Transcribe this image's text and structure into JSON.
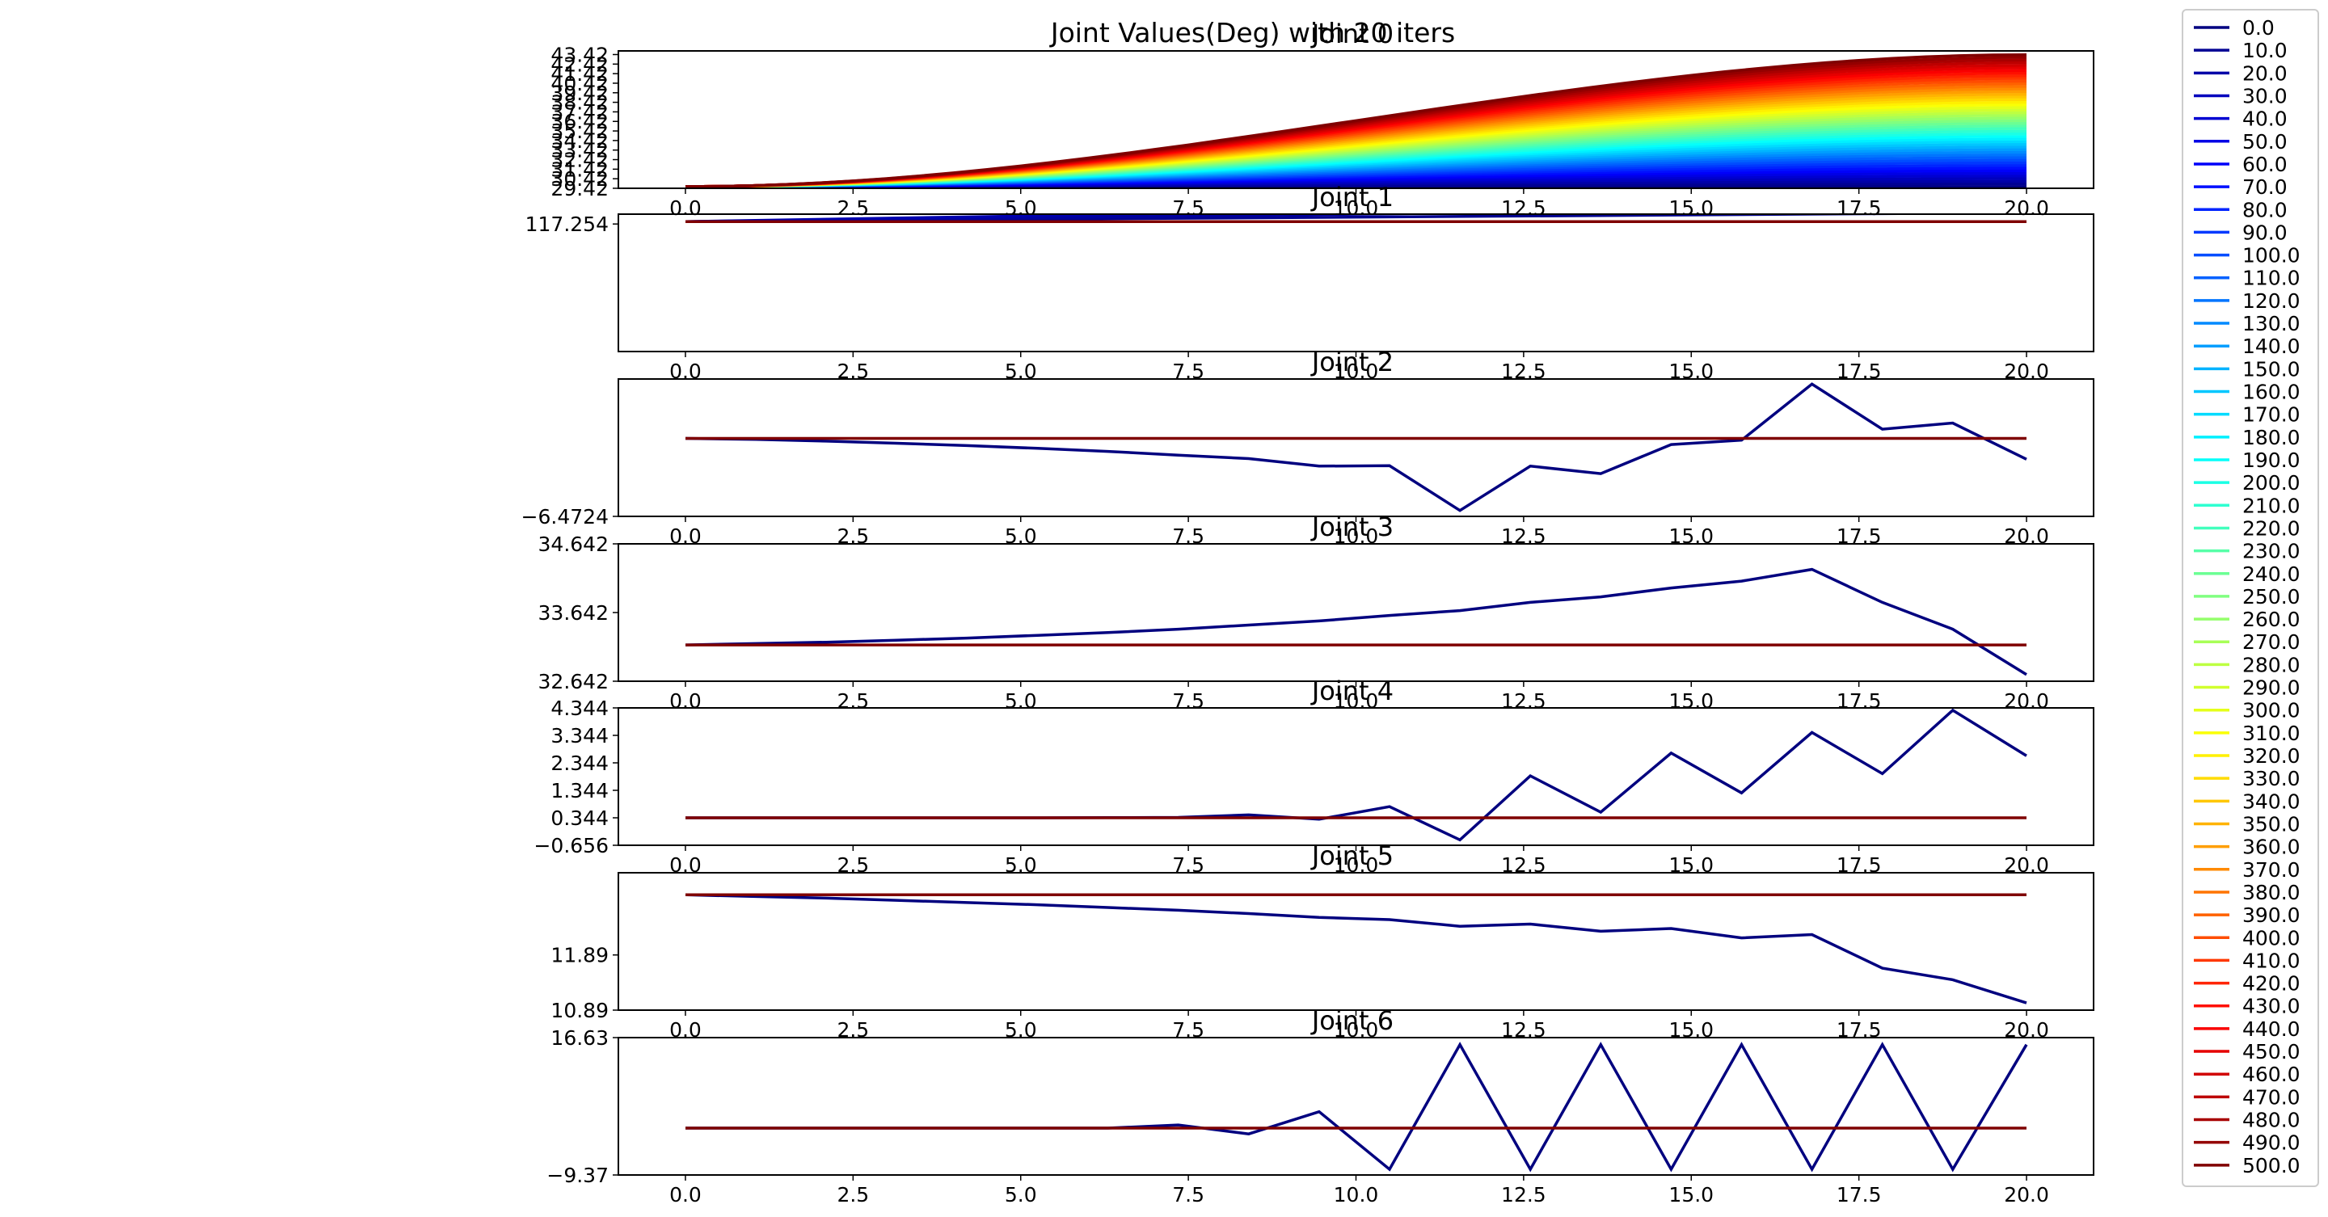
{
  "figure_title": "Joint Values(Deg) with 20 iters",
  "chart_data": [
    {
      "type": "line",
      "title": "Joint 0",
      "x_ticks": [
        "0.0",
        "2.5",
        "5.0",
        "7.5",
        "10.0",
        "12.5",
        "15.0",
        "17.5",
        "20.0"
      ],
      "xlim": [
        -1,
        21
      ],
      "ylim": [
        29.42,
        43.8
      ],
      "y_ticks": [
        "29.42",
        "30.42",
        "31.42",
        "32.42",
        "33.42",
        "34.42",
        "35.42",
        "36.42",
        "37.42",
        "38.42",
        "39.42",
        "40.42",
        "41.42",
        "42.42",
        "43.42"
      ],
      "x_start": 0,
      "x_end": 20,
      "y_start": 29.6,
      "fan_end_min": 29.6,
      "fan_end_max": 43.4,
      "num_series": 51,
      "colormap": "jet",
      "note_series_names": "0.0..500.0 step 10"
    },
    {
      "type": "line",
      "title": "Joint 1",
      "x_ticks": [
        "0.0",
        "2.5",
        "5.0",
        "7.5",
        "10.0",
        "12.5",
        "15.0",
        "17.5",
        "20.0"
      ],
      "xlim": [
        -1,
        21
      ],
      "ylim": [
        116.4,
        117.32
      ],
      "y_ticks": [
        "117.254"
      ],
      "series": [
        {
          "name": "0.0",
          "x": [
            0,
            20
          ],
          "y": [
            117.27,
            117.27
          ],
          "color": "#00007f"
        },
        {
          "name": "10.0",
          "x": [
            0,
            20
          ],
          "y": [
            117.27,
            117.33
          ],
          "color": "#00008f"
        },
        {
          "name": "20.0",
          "x": [
            0,
            12
          ],
          "y": [
            117.27,
            117.33
          ],
          "color": "#00009f"
        },
        {
          "name": "30.0",
          "x": [
            0,
            8
          ],
          "y": [
            117.27,
            117.33
          ],
          "color": "#0000af"
        },
        {
          "name": "500.0",
          "x": [
            0,
            20
          ],
          "y": [
            117.27,
            117.27
          ],
          "color": "#7f0000"
        }
      ]
    },
    {
      "type": "line",
      "title": "Joint 2",
      "x_ticks": [
        "0.0",
        "2.5",
        "5.0",
        "7.5",
        "10.0",
        "12.5",
        "15.0",
        "17.5",
        "20.0"
      ],
      "xlim": [
        -1,
        21
      ],
      "ylim": [
        -6.4724,
        -2.45
      ],
      "y_ticks": [
        "-6.4724"
      ],
      "series": [
        {
          "name": "0.0",
          "x": [
            0,
            1.05,
            2.1,
            3.15,
            4.2,
            5.25,
            6.3,
            7.35,
            8.4,
            9.45,
            10.5,
            11.55,
            12.6,
            13.65,
            14.7,
            15.75,
            16.8,
            17.85,
            18.9,
            20
          ],
          "y": [
            -4.19,
            -4.22,
            -4.27,
            -4.33,
            -4.4,
            -4.48,
            -4.57,
            -4.68,
            -4.78,
            -5.0,
            -4.99,
            -6.3,
            -5.0,
            -5.22,
            -4.37,
            -4.24,
            -2.6,
            -3.92,
            -3.74,
            -4.8
          ],
          "color": "#00007f"
        },
        {
          "name": "500.0",
          "x": [
            0,
            20
          ],
          "y": [
            -4.19,
            -4.19
          ],
          "color": "#7f0000"
        }
      ]
    },
    {
      "type": "line",
      "title": "Joint 3",
      "x_ticks": [
        "0.0",
        "2.5",
        "5.0",
        "7.5",
        "10.0",
        "12.5",
        "15.0",
        "17.5",
        "20.0"
      ],
      "xlim": [
        -1,
        21
      ],
      "ylim": [
        32.642,
        34.642
      ],
      "y_ticks": [
        "32.642",
        "33.642",
        "34.642"
      ],
      "series": [
        {
          "name": "0.0",
          "x": [
            0,
            1.05,
            2.1,
            3.15,
            4.2,
            5.25,
            6.3,
            7.35,
            8.4,
            9.45,
            10.5,
            11.55,
            12.6,
            13.65,
            14.7,
            15.75,
            16.8,
            17.85,
            18.9,
            20
          ],
          "y": [
            33.17,
            33.19,
            33.21,
            33.24,
            33.27,
            33.31,
            33.35,
            33.4,
            33.46,
            33.52,
            33.6,
            33.67,
            33.79,
            33.87,
            34.0,
            34.1,
            34.27,
            33.79,
            33.4,
            32.74
          ],
          "color": "#00007f"
        },
        {
          "name": "500.0",
          "x": [
            0,
            20
          ],
          "y": [
            33.17,
            33.17
          ],
          "color": "#7f0000"
        }
      ]
    },
    {
      "type": "line",
      "title": "Joint 4",
      "x_ticks": [
        "0.0",
        "2.5",
        "5.0",
        "7.5",
        "10.0",
        "12.5",
        "15.0",
        "17.5",
        "20.0"
      ],
      "xlim": [
        -1,
        21
      ],
      "ylim": [
        -0.656,
        4.344
      ],
      "y_ticks": [
        "-0.656",
        "0.344",
        "1.344",
        "2.344",
        "3.344",
        "4.344"
      ],
      "series": [
        {
          "name": "0.0",
          "x": [
            0,
            1.05,
            2.1,
            3.15,
            4.2,
            5.25,
            6.3,
            7.35,
            8.4,
            9.45,
            10.5,
            11.55,
            12.6,
            13.65,
            14.7,
            15.75,
            16.8,
            17.85,
            18.9,
            20
          ],
          "y": [
            0.344,
            0.344,
            0.344,
            0.344,
            0.344,
            0.344,
            0.35,
            0.36,
            0.45,
            0.29,
            0.75,
            -0.46,
            1.87,
            0.55,
            2.7,
            1.25,
            3.45,
            1.95,
            4.26,
            2.6
          ],
          "color": "#00007f"
        },
        {
          "name": "500.0",
          "x": [
            0,
            20
          ],
          "y": [
            0.344,
            0.344
          ],
          "color": "#7f0000"
        }
      ]
    },
    {
      "type": "line",
      "title": "Joint 5",
      "x_ticks": [
        "0.0",
        "2.5",
        "5.0",
        "7.5",
        "10.0",
        "12.5",
        "15.0",
        "17.5",
        "20.0"
      ],
      "xlim": [
        -1,
        21
      ],
      "ylim": [
        10.89,
        13.38
      ],
      "y_ticks": [
        "10.89",
        "11.89"
      ],
      "series": [
        {
          "name": "0.0",
          "x": [
            0,
            1.05,
            2.1,
            3.15,
            4.2,
            5.25,
            6.3,
            7.35,
            8.4,
            9.45,
            10.5,
            11.55,
            12.6,
            13.65,
            14.7,
            15.75,
            16.8,
            17.85,
            18.9,
            20
          ],
          "y": [
            12.98,
            12.95,
            12.92,
            12.88,
            12.84,
            12.8,
            12.75,
            12.7,
            12.64,
            12.57,
            12.53,
            12.41,
            12.45,
            12.32,
            12.37,
            12.2,
            12.26,
            11.65,
            11.44,
            11.02
          ],
          "color": "#00007f"
        },
        {
          "name": "500.0",
          "x": [
            0,
            20
          ],
          "y": [
            12.98,
            12.98
          ],
          "color": "#7f0000"
        }
      ]
    },
    {
      "type": "line",
      "title": "Joint 6",
      "x_ticks": [
        "0.0",
        "2.5",
        "5.0",
        "7.5",
        "10.0",
        "12.5",
        "15.0",
        "17.5",
        "20.0"
      ],
      "xlim": [
        -1,
        21
      ],
      "ylim": [
        -9.37,
        16.63
      ],
      "y_ticks": [
        "16.63",
        "-9.37"
      ],
      "series": [
        {
          "name": "0.0",
          "x": [
            0,
            1.05,
            2.1,
            3.15,
            4.2,
            5.25,
            6.3,
            7.35,
            8.4,
            9.45,
            10.5,
            11.55,
            12.6,
            13.65,
            14.7,
            15.75,
            16.8,
            17.85,
            18.9,
            20
          ],
          "y": [
            -0.5,
            -0.5,
            -0.5,
            -0.5,
            -0.5,
            -0.5,
            -0.5,
            0.1,
            -1.6,
            2.6,
            -8.3,
            15.3,
            -8.3,
            15.3,
            -8.3,
            15.3,
            -8.3,
            15.3,
            -8.3,
            15.3
          ],
          "color": "#00007f"
        },
        {
          "name": "500.0",
          "x": [
            0,
            20
          ],
          "y": [
            -0.5,
            -0.5
          ],
          "color": "#7f0000"
        }
      ]
    }
  ],
  "legend": {
    "position": "right",
    "labels": [
      "0.0",
      "10.0",
      "20.0",
      "30.0",
      "40.0",
      "50.0",
      "60.0",
      "70.0",
      "80.0",
      "90.0",
      "100.0",
      "110.0",
      "120.0",
      "130.0",
      "140.0",
      "150.0",
      "160.0",
      "170.0",
      "180.0",
      "190.0",
      "200.0",
      "210.0",
      "220.0",
      "230.0",
      "240.0",
      "250.0",
      "260.0",
      "270.0",
      "280.0",
      "290.0",
      "300.0",
      "310.0",
      "320.0",
      "330.0",
      "340.0",
      "350.0",
      "360.0",
      "370.0",
      "380.0",
      "390.0",
      "400.0",
      "410.0",
      "420.0",
      "430.0",
      "440.0",
      "450.0",
      "460.0",
      "470.0",
      "480.0",
      "490.0",
      "500.0"
    ]
  }
}
